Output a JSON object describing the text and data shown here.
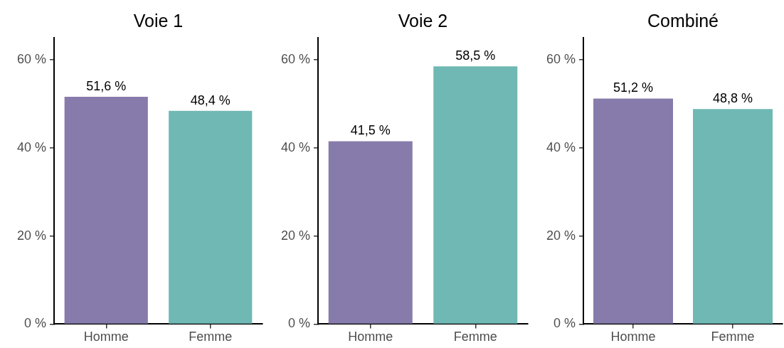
{
  "chart_data": [
    {
      "type": "bar",
      "title": "Voie 1",
      "categories": [
        "Homme",
        "Femme"
      ],
      "values": [
        51.6,
        48.4
      ],
      "colors": [
        "#877bab",
        "#6fb8b4"
      ],
      "value_labels": [
        "51,6 %",
        "48,4 %"
      ],
      "ylim": [
        0,
        65
      ],
      "yticks": [
        {
          "value": 0,
          "label": "0 %"
        },
        {
          "value": 20,
          "label": "20 %"
        },
        {
          "value": 40,
          "label": "40 %"
        },
        {
          "value": 60,
          "label": "60 %"
        }
      ]
    },
    {
      "type": "bar",
      "title": "Voie 2",
      "categories": [
        "Homme",
        "Femme"
      ],
      "values": [
        41.5,
        58.5
      ],
      "colors": [
        "#877bab",
        "#6fb8b4"
      ],
      "value_labels": [
        "41,5 %",
        "58,5 %"
      ],
      "ylim": [
        0,
        65
      ],
      "yticks": [
        {
          "value": 0,
          "label": "0 %"
        },
        {
          "value": 20,
          "label": "20 %"
        },
        {
          "value": 40,
          "label": "40 %"
        },
        {
          "value": 60,
          "label": "60 %"
        }
      ]
    },
    {
      "type": "bar",
      "title": "Combiné",
      "categories": [
        "Homme",
        "Femme"
      ],
      "values": [
        51.2,
        48.8
      ],
      "colors": [
        "#877bab",
        "#6fb8b4"
      ],
      "value_labels": [
        "51,2 %",
        "48,8 %"
      ],
      "ylim": [
        0,
        65
      ],
      "yticks": [
        {
          "value": 0,
          "label": "0 %"
        },
        {
          "value": 20,
          "label": "20 %"
        },
        {
          "value": 40,
          "label": "40 %"
        },
        {
          "value": 60,
          "label": "60 %"
        }
      ]
    }
  ]
}
